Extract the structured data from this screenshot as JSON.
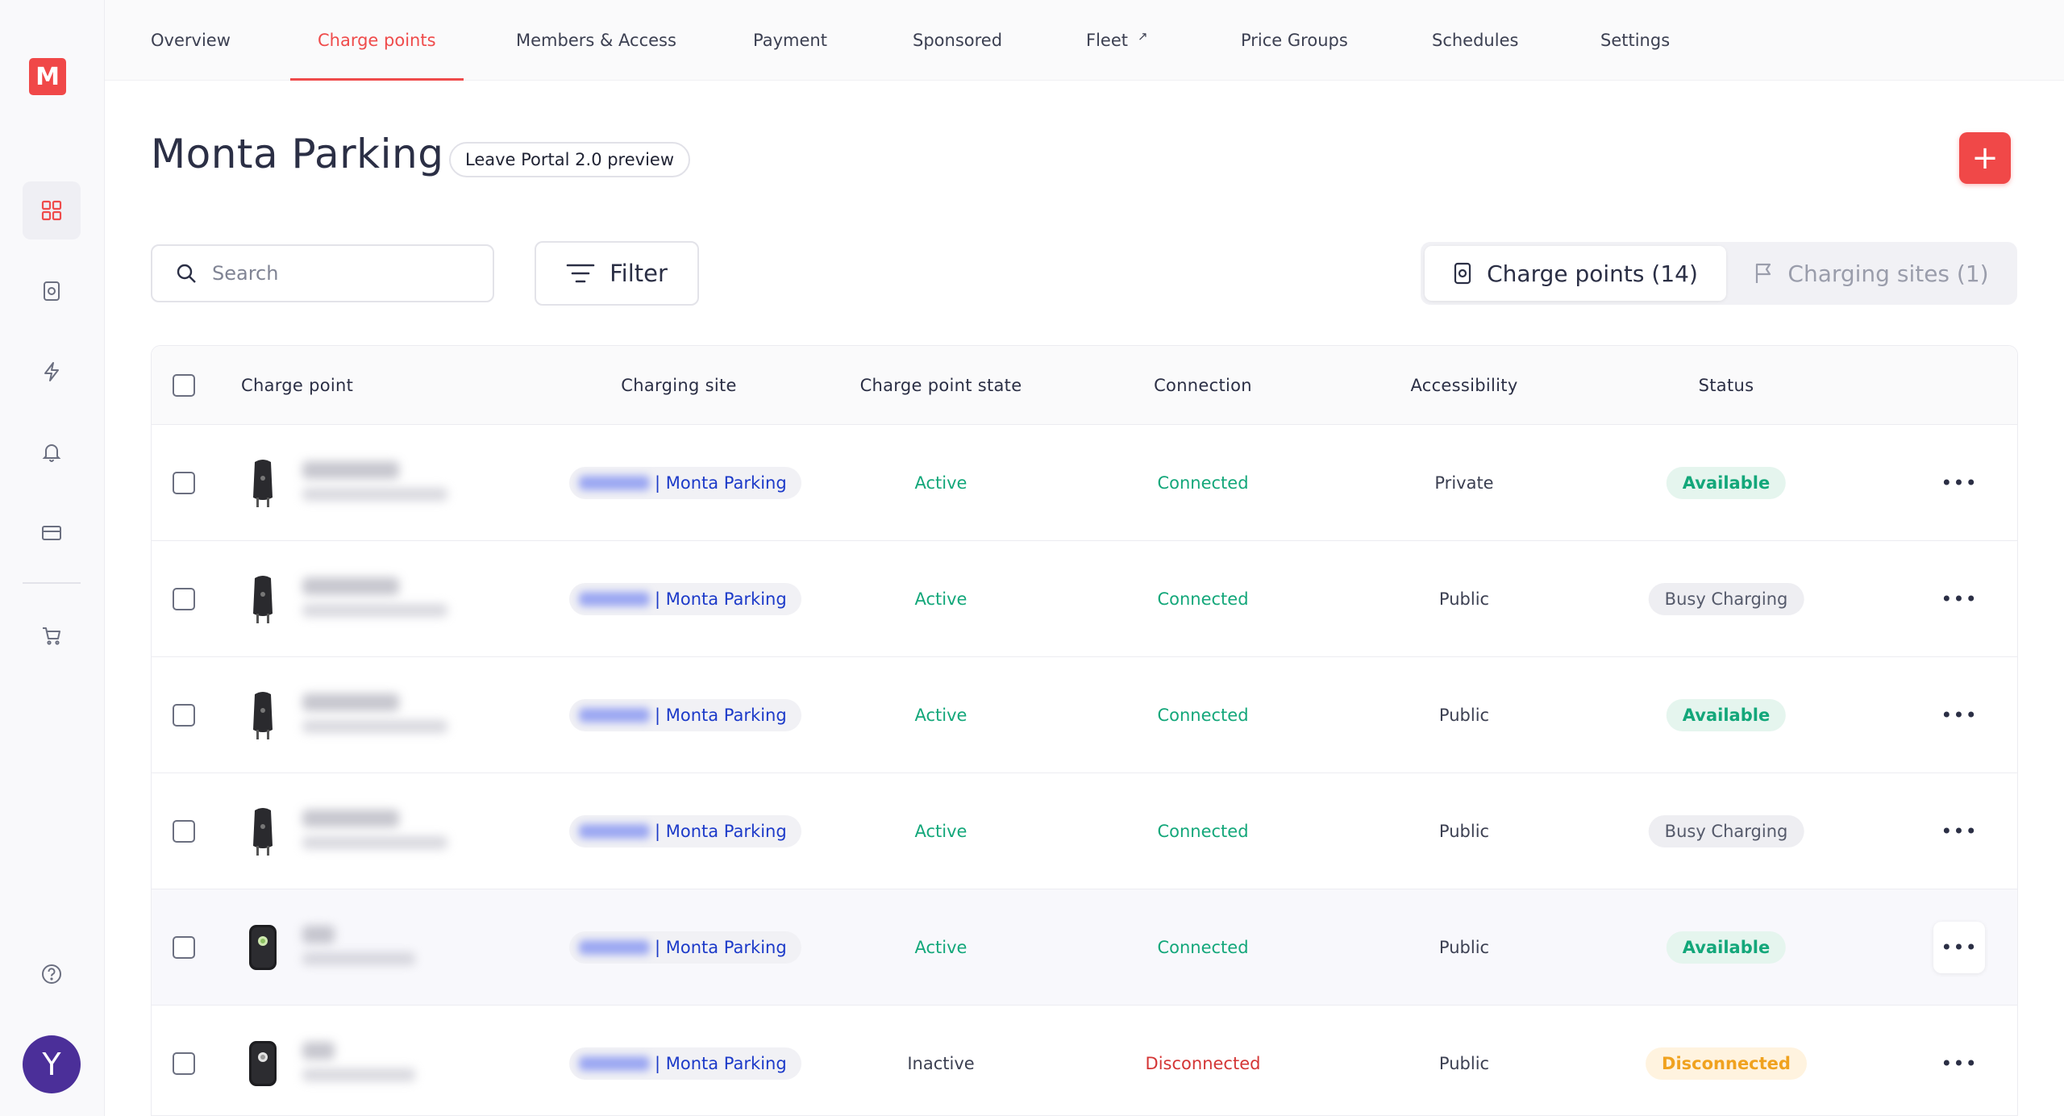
{
  "sidebar": {
    "logo": "M",
    "icons": [
      "dashboard-icon",
      "charge-point-icon",
      "lightning-icon",
      "bell-icon",
      "card-icon",
      "cart-icon",
      "help-icon"
    ],
    "avatar_initial": "Y"
  },
  "tabs": [
    {
      "label": "Overview"
    },
    {
      "label": "Charge points",
      "active": true
    },
    {
      "label": "Members & Access"
    },
    {
      "label": "Payment"
    },
    {
      "label": "Sponsored"
    },
    {
      "label": "Fleet",
      "external": true
    },
    {
      "label": "Price Groups"
    },
    {
      "label": "Schedules"
    },
    {
      "label": "Settings"
    }
  ],
  "header": {
    "title": "Monta Parking",
    "preview_label": "Leave Portal 2.0 preview",
    "add_label": "+"
  },
  "search": {
    "placeholder": "Search"
  },
  "filter": {
    "label": "Filter"
  },
  "segments": {
    "charge_points": "Charge points (14)",
    "charging_sites": "Charging sites (1)"
  },
  "table": {
    "columns": {
      "charge_point": "Charge point",
      "charging_site": "Charging site",
      "state": "Charge point state",
      "connection": "Connection",
      "accessibility": "Accessibility",
      "status": "Status"
    },
    "rows": [
      {
        "site": "| Monta Parking",
        "state": "Active",
        "connection": "Connected",
        "access": "Private",
        "status": "Available"
      },
      {
        "site": "| Monta Parking",
        "state": "Active",
        "connection": "Connected",
        "access": "Public",
        "status": "Busy Charging"
      },
      {
        "site": "| Monta Parking",
        "state": "Active",
        "connection": "Connected",
        "access": "Public",
        "status": "Available"
      },
      {
        "site": "| Monta Parking",
        "state": "Active",
        "connection": "Connected",
        "access": "Public",
        "status": "Busy Charging"
      },
      {
        "site": "| Monta Parking",
        "state": "Active",
        "connection": "Connected",
        "access": "Public",
        "status": "Available"
      },
      {
        "site": "| Monta Parking",
        "state": "Inactive",
        "connection": "Disconnected",
        "access": "Public",
        "status": "Disconnected"
      }
    ],
    "more_label": "•••"
  },
  "colors": {
    "accent": "#ef4b4b",
    "active_green": "#13a77a",
    "disconnected_red": "#d43535",
    "warning_orange": "#f0a21f",
    "link_blue": "#1c3ac9",
    "avatar": "#4b2f99"
  }
}
